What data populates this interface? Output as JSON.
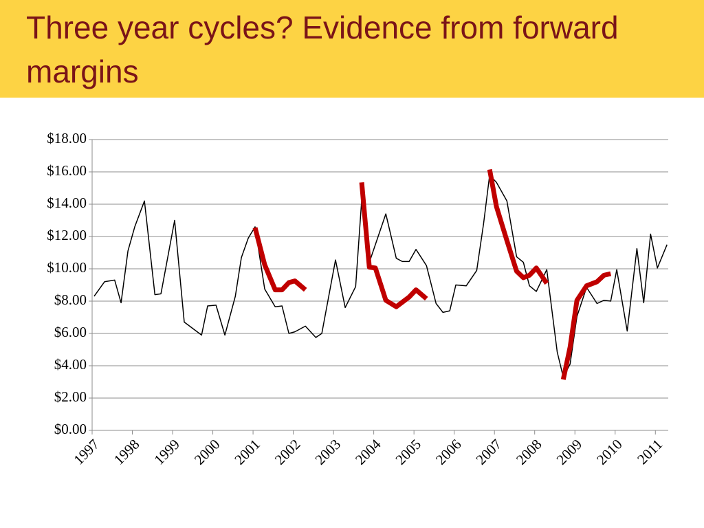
{
  "chart_data": {
    "type": "line",
    "title": "Three year cycles? Evidence from forward margins",
    "xlim": [
      1997,
      2011.32
    ],
    "xticks": [
      1997,
      1998,
      1999,
      2000,
      2001,
      2002,
      2003,
      2004,
      2005,
      2006,
      2007,
      2008,
      2009,
      2010,
      2011
    ],
    "ylim": [
      0,
      18
    ],
    "yticks": [
      {
        "value": 0,
        "label": "$0.00"
      },
      {
        "value": 2,
        "label": "$2.00"
      },
      {
        "value": 4,
        "label": "$4.00"
      },
      {
        "value": 6,
        "label": "$6.00"
      },
      {
        "value": 8,
        "label": "$8.00"
      },
      {
        "value": 10,
        "label": "$10.00"
      },
      {
        "value": 12,
        "label": "$12.00"
      },
      {
        "value": 14,
        "label": "$14.00"
      },
      {
        "value": 16,
        "label": "$16.00"
      },
      {
        "value": 18,
        "label": "$18.00"
      }
    ],
    "grid": true,
    "series": [
      {
        "color": "#000000",
        "linewidth": 1.5,
        "x": [
          1997.05,
          1997.31,
          1997.56,
          1997.72,
          1997.89,
          1998.06,
          1998.3,
          1998.56,
          1998.71,
          1999.05,
          1999.29,
          1999.72,
          1999.87,
          2000.08,
          2000.3,
          2000.56,
          2000.71,
          2000.88,
          2001.05,
          2001.29,
          2001.55,
          2001.72,
          2001.89,
          2002.04,
          2002.3,
          2002.56,
          2002.71,
          2003.05,
          2003.29,
          2003.55,
          2003.72,
          2003.89,
          2004.3,
          2004.56,
          2004.71,
          2004.88,
          2005.05,
          2005.31,
          2005.55,
          2005.72,
          2005.89,
          2006.04,
          2006.3,
          2006.56,
          2006.73,
          2006.88,
          2007.05,
          2007.31,
          2007.55,
          2007.72,
          2007.87,
          2008.04,
          2008.3,
          2008.56,
          2008.71,
          2008.88,
          2009.05,
          2009.29,
          2009.55,
          2009.72,
          2009.89,
          2010.04,
          2010.3,
          2010.54,
          2010.71,
          2010.88,
          2011.05,
          2011.29
        ],
        "values": [
          8.3,
          9.2,
          9.3,
          7.9,
          11.1,
          12.6,
          14.2,
          8.4,
          8.45,
          13.0,
          6.7,
          5.9,
          7.7,
          7.75,
          5.9,
          8.3,
          10.7,
          11.9,
          12.6,
          8.75,
          7.65,
          7.7,
          6.0,
          6.1,
          6.45,
          5.75,
          6.0,
          10.55,
          7.6,
          8.9,
          15.0,
          10.4,
          13.4,
          10.65,
          10.45,
          10.45,
          11.2,
          10.2,
          7.85,
          7.3,
          7.4,
          9.0,
          8.95,
          9.9,
          12.8,
          15.8,
          15.35,
          14.2,
          10.75,
          10.4,
          8.95,
          8.6,
          9.95,
          4.85,
          3.3,
          4.1,
          7.05,
          8.85,
          7.85,
          8.05,
          8.0,
          9.95,
          6.15,
          11.25,
          7.9,
          12.15,
          10.05,
          11.5
        ]
      },
      {
        "color": "#c00000",
        "linewidth": 7,
        "x": [
          2001.05,
          2001.29,
          2001.55,
          2001.72,
          2001.89,
          2002.04,
          2002.3,
          null,
          2003.7,
          2003.89,
          2004.04,
          2004.3,
          2004.56,
          2004.88,
          2005.05,
          2005.31,
          null,
          2006.88,
          2007.05,
          2007.31,
          2007.55,
          2007.72,
          2007.87,
          2008.04,
          2008.3,
          null,
          2008.71,
          2008.88,
          2009.05,
          2009.29,
          2009.55,
          2009.72,
          2009.89
        ],
        "values": [
          12.55,
          10.25,
          8.7,
          8.7,
          9.15,
          9.25,
          8.7,
          null,
          15.35,
          10.1,
          10.05,
          8.05,
          7.65,
          8.25,
          8.7,
          8.15,
          null,
          16.15,
          13.85,
          11.75,
          9.85,
          9.45,
          9.6,
          10.05,
          9.1,
          null,
          3.15,
          5.15,
          8.05,
          8.95,
          9.2,
          9.6,
          9.7
        ]
      }
    ]
  }
}
